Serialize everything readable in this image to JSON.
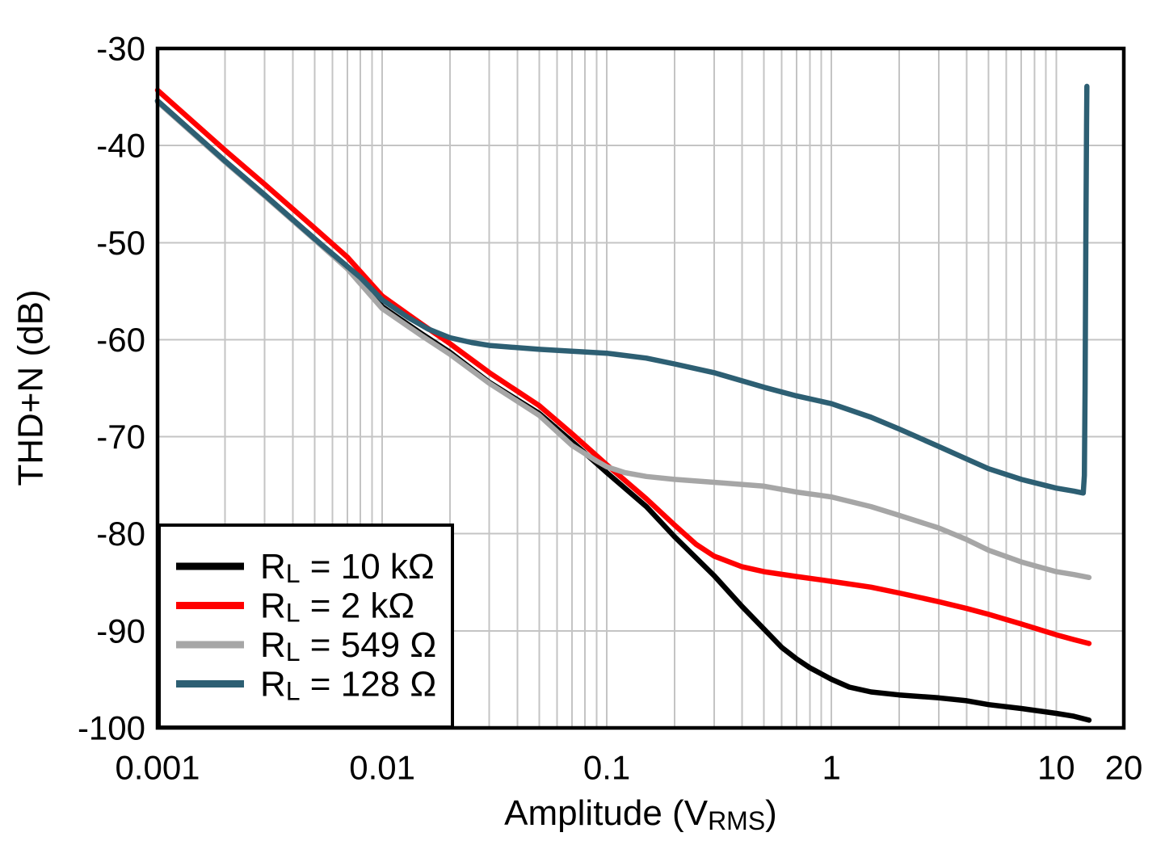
{
  "figure": {
    "background": "#FFFFFF",
    "axis_color": "#000000",
    "grid_color": "#C4C4C4"
  },
  "chart_data": {
    "type": "line",
    "x_scale": "log",
    "xlim": [
      0.001,
      20
    ],
    "ylim": [
      -100,
      -30
    ],
    "xlabel": {
      "prefix": "Amplitude (V",
      "subscript": "RMS",
      "suffix": ")"
    },
    "ylabel": "THD+N (dB)",
    "x_ticks": [
      {
        "value": 0.001,
        "label": "0.001"
      },
      {
        "value": 0.01,
        "label": "0.01"
      },
      {
        "value": 0.1,
        "label": "0.1"
      },
      {
        "value": 1,
        "label": "1"
      },
      {
        "value": 10,
        "label": "10"
      },
      {
        "value": 20,
        "label": "20"
      }
    ],
    "y_ticks": [
      {
        "value": -30,
        "label": "-30"
      },
      {
        "value": -40,
        "label": "-40"
      },
      {
        "value": -50,
        "label": "-50"
      },
      {
        "value": -60,
        "label": "-60"
      },
      {
        "value": -70,
        "label": "-70"
      },
      {
        "value": -80,
        "label": "-80"
      },
      {
        "value": -90,
        "label": "-90"
      },
      {
        "value": -100,
        "label": "-100"
      }
    ],
    "grid": {
      "vertical_minor": true,
      "vertical_major": true,
      "horizontal_major": true
    },
    "legend": {
      "position": "bottom-left",
      "items": [
        {
          "symbol": "R",
          "subscript": "L",
          "rest": " = 10 kΩ",
          "color": "#000000",
          "series": "rl-10k"
        },
        {
          "symbol": "R",
          "subscript": "L",
          "rest": " = 2 kΩ",
          "color": "#FF0000",
          "series": "rl-2k"
        },
        {
          "symbol": "R",
          "subscript": "L",
          "rest": " = 549 Ω",
          "color": "#A6A6A6",
          "series": "rl-549"
        },
        {
          "symbol": "R",
          "subscript": "L",
          "rest": " = 128 Ω",
          "color": "#2D5F73",
          "series": "rl-128"
        }
      ]
    },
    "series": [
      {
        "id": "rl-10k",
        "label": "RL = 10 kΩ",
        "color": "#000000",
        "points": [
          [
            0.001,
            -35.4
          ],
          [
            0.002,
            -41.6
          ],
          [
            0.003,
            -45.1
          ],
          [
            0.005,
            -49.6
          ],
          [
            0.007,
            -52.6
          ],
          [
            0.01,
            -56.6
          ],
          [
            0.015,
            -59.4
          ],
          [
            0.02,
            -61.3
          ],
          [
            0.03,
            -64.4
          ],
          [
            0.05,
            -67.6
          ],
          [
            0.07,
            -70.5
          ],
          [
            0.1,
            -73.7
          ],
          [
            0.15,
            -77.2
          ],
          [
            0.2,
            -80.3
          ],
          [
            0.3,
            -84.3
          ],
          [
            0.4,
            -87.5
          ],
          [
            0.5,
            -89.8
          ],
          [
            0.6,
            -91.7
          ],
          [
            0.7,
            -92.9
          ],
          [
            0.8,
            -93.8
          ],
          [
            1,
            -95.0
          ],
          [
            1.2,
            -95.8
          ],
          [
            1.5,
            -96.3
          ],
          [
            2,
            -96.6
          ],
          [
            3,
            -96.9
          ],
          [
            4,
            -97.2
          ],
          [
            5,
            -97.6
          ],
          [
            7,
            -98.0
          ],
          [
            10,
            -98.5
          ],
          [
            12,
            -98.8
          ],
          [
            14,
            -99.2
          ]
        ]
      },
      {
        "id": "rl-2k",
        "label": "RL = 2 kΩ",
        "color": "#FF0000",
        "points": [
          [
            0.001,
            -34.3
          ],
          [
            0.002,
            -40.5
          ],
          [
            0.003,
            -44.0
          ],
          [
            0.005,
            -48.5
          ],
          [
            0.007,
            -51.5
          ],
          [
            0.01,
            -55.5
          ],
          [
            0.015,
            -58.4
          ],
          [
            0.02,
            -60.4
          ],
          [
            0.03,
            -63.4
          ],
          [
            0.05,
            -66.8
          ],
          [
            0.07,
            -69.7
          ],
          [
            0.1,
            -72.9
          ],
          [
            0.15,
            -76.4
          ],
          [
            0.2,
            -79.1
          ],
          [
            0.25,
            -81.1
          ],
          [
            0.3,
            -82.3
          ],
          [
            0.4,
            -83.4
          ],
          [
            0.5,
            -83.9
          ],
          [
            0.7,
            -84.4
          ],
          [
            1,
            -84.9
          ],
          [
            1.5,
            -85.5
          ],
          [
            2,
            -86.1
          ],
          [
            3,
            -87.0
          ],
          [
            4,
            -87.7
          ],
          [
            5,
            -88.3
          ],
          [
            7,
            -89.3
          ],
          [
            10,
            -90.4
          ],
          [
            12,
            -90.9
          ],
          [
            14,
            -91.3
          ]
        ]
      },
      {
        "id": "rl-549",
        "label": "RL = 549 Ω",
        "color": "#A6A6A6",
        "points": [
          [
            0.001,
            -35.5
          ],
          [
            0.002,
            -41.7
          ],
          [
            0.003,
            -45.2
          ],
          [
            0.005,
            -49.7
          ],
          [
            0.007,
            -52.7
          ],
          [
            0.01,
            -56.8
          ],
          [
            0.015,
            -59.6
          ],
          [
            0.02,
            -61.5
          ],
          [
            0.03,
            -64.5
          ],
          [
            0.05,
            -67.8
          ],
          [
            0.07,
            -70.9
          ],
          [
            0.09,
            -72.5
          ],
          [
            0.1,
            -73.1
          ],
          [
            0.12,
            -73.7
          ],
          [
            0.15,
            -74.1
          ],
          [
            0.2,
            -74.4
          ],
          [
            0.3,
            -74.7
          ],
          [
            0.5,
            -75.1
          ],
          [
            0.7,
            -75.7
          ],
          [
            1,
            -76.2
          ],
          [
            1.5,
            -77.2
          ],
          [
            2,
            -78.1
          ],
          [
            3,
            -79.4
          ],
          [
            4,
            -80.6
          ],
          [
            5,
            -81.7
          ],
          [
            7,
            -82.9
          ],
          [
            10,
            -83.9
          ],
          [
            12,
            -84.2
          ],
          [
            14,
            -84.5
          ]
        ]
      },
      {
        "id": "rl-128",
        "label": "RL = 128 Ω",
        "color": "#2D5F73",
        "points": [
          [
            0.001,
            -35.4
          ],
          [
            0.002,
            -41.6
          ],
          [
            0.003,
            -45.1
          ],
          [
            0.005,
            -49.6
          ],
          [
            0.008,
            -53.6
          ],
          [
            0.01,
            -55.9
          ],
          [
            0.013,
            -57.7
          ],
          [
            0.016,
            -58.9
          ],
          [
            0.02,
            -59.8
          ],
          [
            0.025,
            -60.3
          ],
          [
            0.03,
            -60.6
          ],
          [
            0.05,
            -61.0
          ],
          [
            0.07,
            -61.2
          ],
          [
            0.1,
            -61.4
          ],
          [
            0.15,
            -61.9
          ],
          [
            0.2,
            -62.5
          ],
          [
            0.3,
            -63.4
          ],
          [
            0.5,
            -64.9
          ],
          [
            0.7,
            -65.8
          ],
          [
            1,
            -66.6
          ],
          [
            1.5,
            -68.0
          ],
          [
            2,
            -69.2
          ],
          [
            3,
            -71.0
          ],
          [
            4,
            -72.3
          ],
          [
            5,
            -73.3
          ],
          [
            7,
            -74.4
          ],
          [
            10,
            -75.3
          ],
          [
            12,
            -75.6
          ],
          [
            13.2,
            -75.8
          ],
          [
            13.35,
            -74.0
          ],
          [
            13.45,
            -65.0
          ],
          [
            13.55,
            -50.0
          ],
          [
            13.65,
            -38.0
          ],
          [
            13.7,
            -33.9
          ]
        ]
      }
    ]
  }
}
